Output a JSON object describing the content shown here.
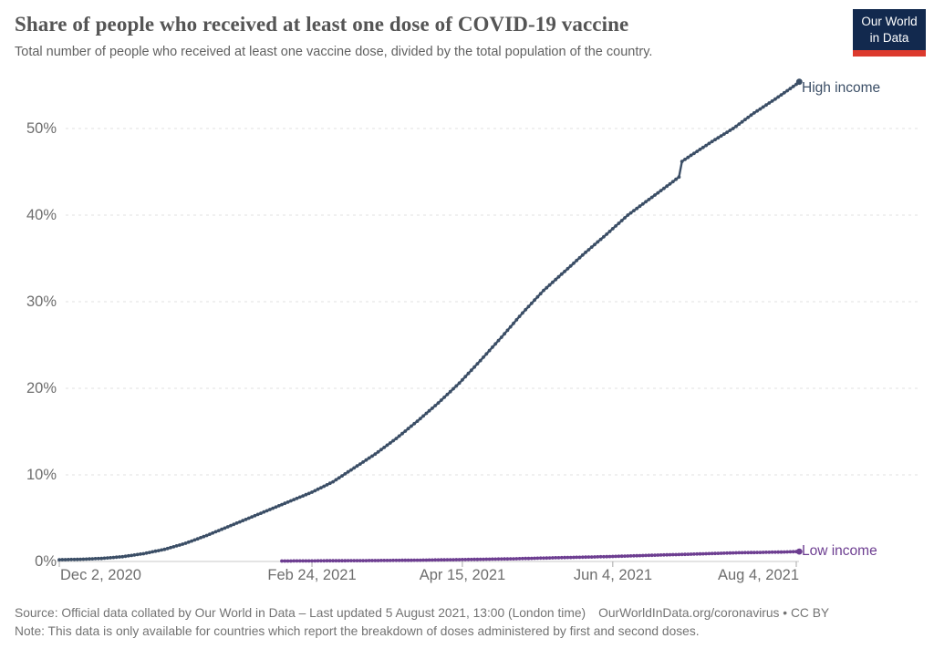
{
  "header": {
    "title": "Share of people who received at least one dose of COVID-19 vaccine",
    "subtitle": "Total number of people who received at least one vaccine dose, divided by the total population of the country.",
    "logo": {
      "line1": "Our World",
      "line2": "in Data"
    }
  },
  "chart_data": {
    "type": "line",
    "title": "Share of people who received at least one dose of COVID-19 vaccine",
    "xlabel": "",
    "ylabel": "",
    "ylim": [
      0,
      57
    ],
    "y_ticks": [
      "0%",
      "10%",
      "20%",
      "30%",
      "40%",
      "50%"
    ],
    "x_ticks": [
      "Dec 2, 2020",
      "Feb 24, 2021",
      "Apr 15, 2021",
      "Jun 4, 2021",
      "Aug 4, 2021"
    ],
    "x_tick_dates": [
      "2020-12-02",
      "2021-02-24",
      "2021-04-15",
      "2021-06-04",
      "2021-08-04"
    ],
    "x_range": [
      "2020-12-02",
      "2021-08-05"
    ],
    "grid": "horizontal-dashed",
    "legend_position": "end-of-line",
    "series": [
      {
        "name": "High income",
        "color": "#3b4e66",
        "points": [
          [
            "2020-12-02",
            0.2
          ],
          [
            "2020-12-09",
            0.25
          ],
          [
            "2020-12-16",
            0.35
          ],
          [
            "2020-12-23",
            0.55
          ],
          [
            "2020-12-30",
            0.9
          ],
          [
            "2021-01-06",
            1.4
          ],
          [
            "2021-01-13",
            2.1
          ],
          [
            "2021-01-20",
            3.0
          ],
          [
            "2021-01-27",
            4.0
          ],
          [
            "2021-02-03",
            5.0
          ],
          [
            "2021-02-10",
            6.0
          ],
          [
            "2021-02-17",
            7.0
          ],
          [
            "2021-02-24",
            8.0
          ],
          [
            "2021-03-03",
            9.2
          ],
          [
            "2021-03-10",
            10.8
          ],
          [
            "2021-03-17",
            12.4
          ],
          [
            "2021-03-24",
            14.2
          ],
          [
            "2021-03-31",
            16.2
          ],
          [
            "2021-04-07",
            18.3
          ],
          [
            "2021-04-14",
            20.6
          ],
          [
            "2021-04-21",
            23.2
          ],
          [
            "2021-04-28",
            25.9
          ],
          [
            "2021-05-05",
            28.7
          ],
          [
            "2021-05-12",
            31.3
          ],
          [
            "2021-05-19",
            33.5
          ],
          [
            "2021-05-26",
            35.7
          ],
          [
            "2021-06-02",
            37.8
          ],
          [
            "2021-06-09",
            40.0
          ],
          [
            "2021-06-16",
            41.8
          ],
          [
            "2021-06-23",
            43.6
          ],
          [
            "2021-06-26",
            44.4
          ],
          [
            "2021-06-27",
            46.2
          ],
          [
            "2021-06-30",
            46.9
          ],
          [
            "2021-07-07",
            48.5
          ],
          [
            "2021-07-14",
            50.0
          ],
          [
            "2021-07-21",
            51.8
          ],
          [
            "2021-07-28",
            53.4
          ],
          [
            "2021-08-04",
            55.1
          ],
          [
            "2021-08-05",
            55.4
          ]
        ]
      },
      {
        "name": "Low income",
        "color": "#6d3e91",
        "points": [
          [
            "2021-02-14",
            0.05
          ],
          [
            "2021-02-19",
            0.06
          ],
          [
            "2021-02-23",
            0.06
          ],
          [
            "2021-03-01",
            0.08
          ],
          [
            "2021-03-15",
            0.1
          ],
          [
            "2021-04-01",
            0.15
          ],
          [
            "2021-04-15",
            0.22
          ],
          [
            "2021-05-01",
            0.3
          ],
          [
            "2021-05-15",
            0.42
          ],
          [
            "2021-06-01",
            0.55
          ],
          [
            "2021-06-15",
            0.7
          ],
          [
            "2021-07-01",
            0.85
          ],
          [
            "2021-07-15",
            1.0
          ],
          [
            "2021-08-01",
            1.1
          ],
          [
            "2021-08-05",
            1.15
          ]
        ]
      }
    ]
  },
  "footer": {
    "source": "Source: Official data collated by Our World in Data – Last updated 5 August 2021, 13:00 (London time)",
    "link": "OurWorldInData.org/coronavirus • CC BY",
    "note": "Note: This data is only available for countries which report the breakdown of doses administered by first and second doses."
  }
}
